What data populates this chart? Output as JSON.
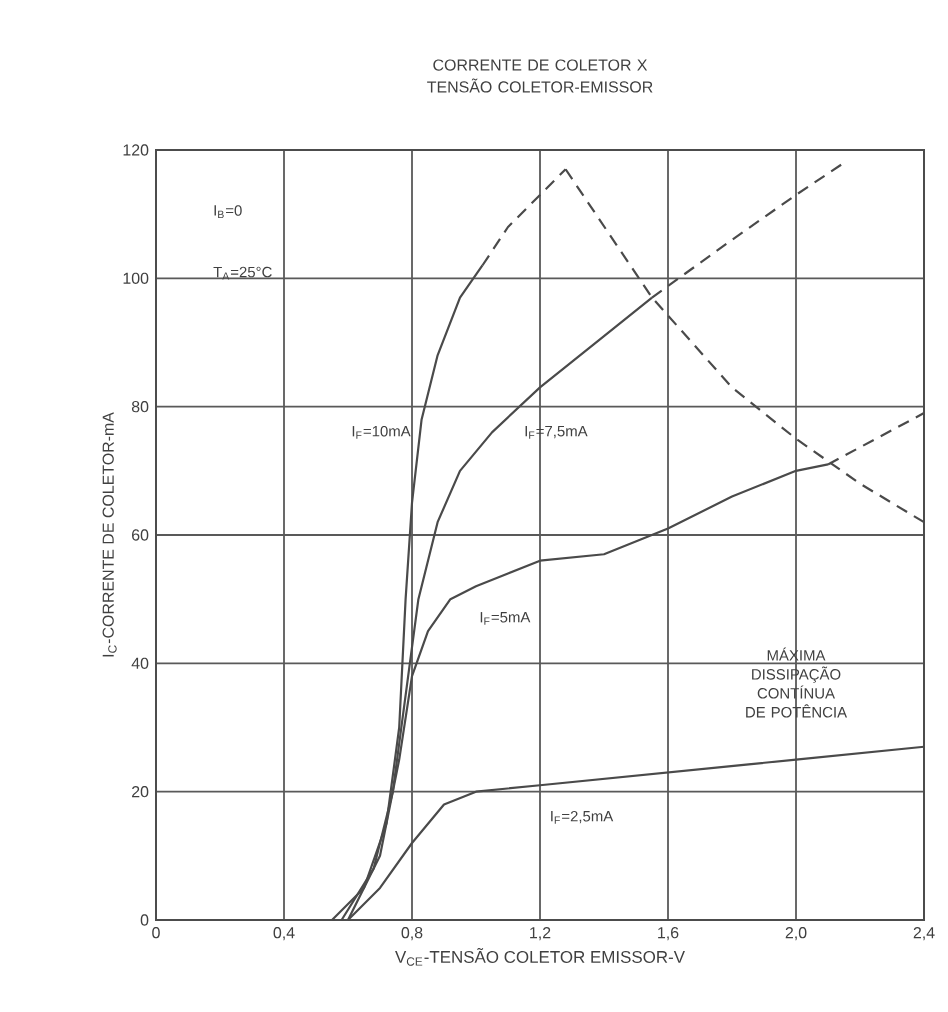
{
  "chart_data": {
    "type": "line",
    "title": "CORRENTE DE COLETOR X TENSÃO COLETOR-EMISSOR",
    "xlabel": "V$_{CE}$-TENSÃO COLETOR EMISSOR-V",
    "ylabel": "I$_{C}$-CORRENTE DE COLETOR-mA",
    "xlim": [
      0,
      2.4
    ],
    "ylim": [
      0,
      120
    ],
    "xticks": [
      0,
      {
        "value": 0.4,
        "label": "0,4"
      },
      {
        "value": 0.8,
        "label": "0,8"
      },
      {
        "value": 1.2,
        "label": "1,2"
      },
      {
        "value": 1.6,
        "label": "1,6"
      },
      {
        "value": 2.0,
        "label": "2,0"
      },
      {
        "value": 2.4,
        "label": "2,4"
      }
    ],
    "yticks": [
      0,
      20,
      40,
      60,
      80,
      100,
      120
    ],
    "grid": true,
    "marker": "none",
    "line_style": "solid",
    "series": [
      {
        "color": "#4a4a4a",
        "x": [
          0.55,
          0.65,
          0.72,
          0.76,
          0.78,
          0.8,
          0.83,
          0.88,
          0.95,
          1.02
        ],
        "values": [
          0,
          5,
          15,
          30,
          50,
          65,
          78,
          88,
          97,
          102
        ]
      },
      {
        "color": "#4a4a4a",
        "line_style": "dashed",
        "x": [
          1.02,
          1.1,
          1.2,
          1.28
        ],
        "values": [
          102,
          108,
          113,
          117
        ]
      },
      {
        "color": "#4a4a4a",
        "x": [
          0.58,
          0.68,
          0.74,
          0.78,
          0.82,
          0.88,
          0.95,
          1.05,
          1.2,
          1.4,
          1.55
        ],
        "values": [
          0,
          8,
          20,
          35,
          50,
          62,
          70,
          76,
          83,
          91,
          97
        ]
      },
      {
        "color": "#4a4a4a",
        "line_style": "dashed",
        "x": [
          1.55,
          1.8,
          2.0,
          2.15
        ],
        "values": [
          97,
          106,
          113,
          118
        ]
      },
      {
        "color": "#4a4a4a",
        "x": [
          0.6,
          0.7,
          0.76,
          0.8,
          0.85,
          0.92,
          1.0,
          1.1,
          1.2,
          1.4,
          1.6,
          1.8,
          2.0,
          2.1
        ],
        "values": [
          0,
          10,
          25,
          38,
          45,
          50,
          52,
          54,
          56,
          57,
          61,
          66,
          70,
          71
        ]
      },
      {
        "color": "#4a4a4a",
        "line_style": "dashed",
        "x": [
          2.1,
          2.25,
          2.4
        ],
        "values": [
          71,
          75,
          79
        ]
      },
      {
        "color": "#4a4a4a",
        "x": [
          0.6,
          0.7,
          0.8,
          0.9,
          1.0,
          1.2,
          1.6,
          2.0,
          2.4
        ],
        "values": [
          0,
          5,
          12,
          18,
          20,
          21,
          23,
          25,
          27
        ]
      },
      {
        "color": "#4a4a4a",
        "line_style": "dashed",
        "x": [
          1.28,
          1.55,
          1.8,
          2.0,
          2.2,
          2.4
        ],
        "values": [
          117,
          97,
          83,
          75,
          68,
          62
        ]
      }
    ],
    "annotations": [
      "I$_{B}$=0",
      "T$_{A}$=25°C",
      "I$_{F}$=10mA",
      "I$_{F}$=7,5mA",
      "I$_{F}$=5mA",
      "I$_{F}$=2,5mA",
      "MÁXIMA DISSIPAÇÃO CONTÍNUA DE POTÊNCIA"
    ]
  }
}
